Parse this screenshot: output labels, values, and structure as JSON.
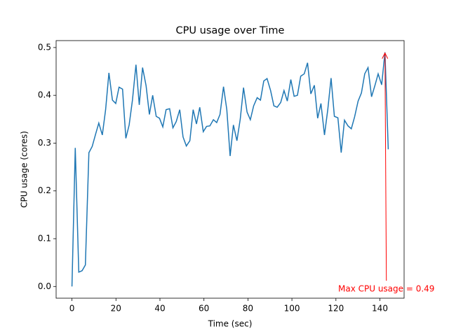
{
  "chart_data": {
    "type": "line",
    "title": "CPU usage over Time",
    "x_label": "Time (sec)",
    "y_label": "CPU usage (cores)",
    "x": [
      0,
      1.5,
      3.1,
      4.6,
      6.1,
      7.7,
      9.2,
      10.7,
      12.2,
      13.8,
      15.3,
      16.8,
      18.4,
      19.9,
      21.4,
      23.0,
      24.5,
      26.0,
      27.5,
      29.1,
      30.6,
      32.1,
      33.7,
      35.2,
      36.7,
      38.3,
      39.8,
      41.3,
      42.8,
      44.4,
      45.9,
      47.4,
      49.0,
      50.5,
      52.0,
      53.6,
      55.1,
      56.6,
      58.1,
      59.7,
      61.2,
      62.7,
      64.3,
      65.8,
      67.3,
      68.9,
      70.4,
      71.9,
      73.4,
      75.0,
      76.5,
      78.0,
      79.6,
      81.1,
      82.6,
      84.2,
      85.7,
      87.2,
      88.7,
      90.3,
      91.8,
      93.3,
      94.9,
      96.4,
      97.9,
      99.5,
      101.0,
      102.5,
      104.0,
      105.6,
      107.1,
      108.6,
      110.2,
      111.7,
      113.2,
      114.8,
      116.3,
      117.8,
      119.3,
      120.9,
      122.4,
      123.9,
      125.5,
      127.0,
      128.5,
      130.1,
      131.6,
      133.1,
      134.6,
      136.2,
      137.7,
      139.2,
      140.8,
      142.3,
      143.8
    ],
    "series": [
      {
        "color": "#1f77b4",
        "values": [
          0.0,
          0.29,
          0.03,
          0.033,
          0.045,
          0.28,
          0.293,
          0.318,
          0.342,
          0.317,
          0.37,
          0.447,
          0.39,
          0.383,
          0.417,
          0.413,
          0.31,
          0.338,
          0.39,
          0.464,
          0.38,
          0.458,
          0.42,
          0.36,
          0.4,
          0.356,
          0.352,
          0.334,
          0.37,
          0.372,
          0.332,
          0.345,
          0.37,
          0.313,
          0.294,
          0.305,
          0.37,
          0.34,
          0.375,
          0.324,
          0.335,
          0.336,
          0.349,
          0.343,
          0.36,
          0.418,
          0.37,
          0.273,
          0.338,
          0.305,
          0.35,
          0.416,
          0.365,
          0.349,
          0.378,
          0.395,
          0.39,
          0.43,
          0.435,
          0.41,
          0.378,
          0.375,
          0.385,
          0.41,
          0.388,
          0.433,
          0.398,
          0.4,
          0.44,
          0.445,
          0.468,
          0.403,
          0.421,
          0.352,
          0.383,
          0.317,
          0.37,
          0.436,
          0.356,
          0.353,
          0.28,
          0.348,
          0.336,
          0.33,
          0.355,
          0.388,
          0.405,
          0.445,
          0.458,
          0.397,
          0.42,
          0.445,
          0.422,
          0.49,
          0.287
        ]
      }
    ],
    "annotation": {
      "text": "Max CPU usage = 0.49",
      "color": "red",
      "point_index": 93
    },
    "xlim": [
      -7.2,
      151.0
    ],
    "ylim": [
      -0.0245,
      0.5145
    ],
    "xticks": [
      0,
      20,
      40,
      60,
      80,
      100,
      120,
      140
    ],
    "yticks": [
      {
        "value": 0,
        "label": "0.0"
      },
      0.1,
      0.2,
      0.3,
      0.4,
      0.5
    ]
  }
}
